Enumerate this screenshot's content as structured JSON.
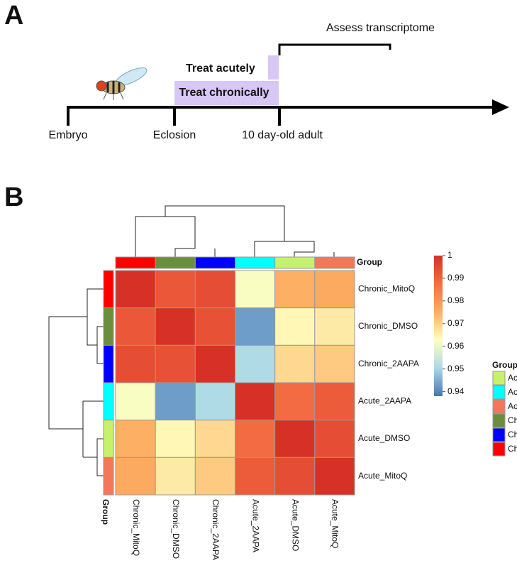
{
  "panel_a": {
    "label": "A",
    "stages": [
      "Embryo",
      "Eclosion",
      "10 day-old  adult"
    ],
    "treat_acutely": "Treat acutely",
    "treat_chronically": "Treat chronically",
    "assess": "Assess transcriptome"
  },
  "chart_data": {
    "type": "heatmap",
    "panel_label": "B",
    "rows": [
      "Chronic_MitoQ",
      "Chronic_DMSO",
      "Chronic_2AAPA",
      "Acute_2AAPA",
      "Acute_DMSO",
      "Acute_MitoQ"
    ],
    "columns": [
      "Chronic_MitoQ",
      "Chronic_DMSO",
      "Chronic_2AAPA",
      "Acute_2AAPA",
      "Acute_DMSO",
      "Acute_MitoQ"
    ],
    "z": [
      [
        1,
        0.992,
        0.994,
        0.962,
        0.975,
        0.976
      ],
      [
        0.992,
        1,
        0.993,
        0.943,
        0.964,
        0.966
      ],
      [
        0.994,
        0.993,
        1,
        0.951,
        0.969,
        0.971
      ],
      [
        0.962,
        0.943,
        0.951,
        1,
        0.988,
        0.991
      ],
      [
        0.975,
        0.964,
        0.969,
        0.988,
        1,
        0.994
      ],
      [
        0.976,
        0.966,
        0.971,
        0.991,
        0.994,
        1
      ]
    ],
    "zlim": [
      0.938,
      1
    ],
    "zticks": [
      0.94,
      0.95,
      0.96,
      0.97,
      0.98,
      0.99,
      1
    ],
    "colormap": [
      "#4575b4",
      "#abd9e9",
      "#ffffbf",
      "#fdae61",
      "#f46d43",
      "#d73027"
    ],
    "annotation_title": "Group",
    "group_colors": [
      "#ff0000",
      "#6b8e3e",
      "#0000ff",
      "#00ffff",
      "#c6f26b",
      "#f4775a"
    ],
    "group_legend": {
      "title": "Group",
      "labels": [
        "Acute_",
        "Acute_",
        "Acute_",
        "Chron",
        "Chron",
        "Chron"
      ],
      "colors": [
        "#c6f26b",
        "#00ffff",
        "#f4775a",
        "#6b8e3e",
        "#0000ff",
        "#ff0000"
      ]
    }
  }
}
